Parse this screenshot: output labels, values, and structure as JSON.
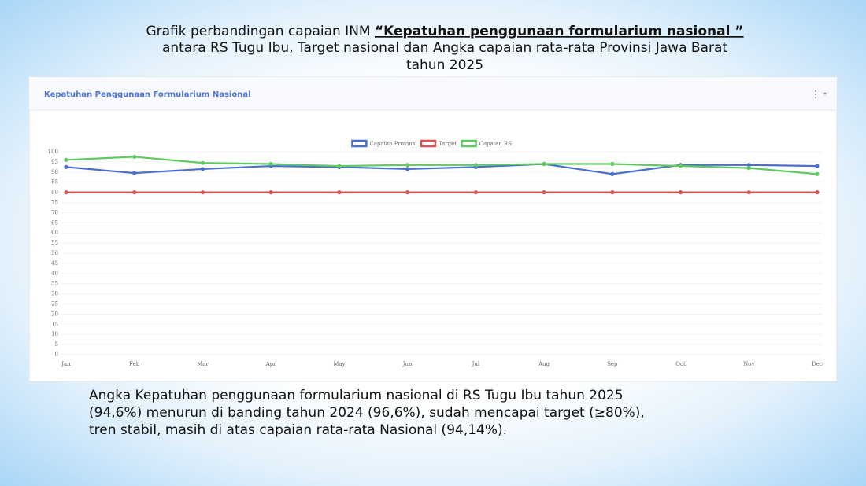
{
  "header": {
    "line1_prefix": "Grafik perbandingan capaian INM ",
    "line1_emphasis": "“Kepatuhan penggunaan formularium nasional ”",
    "line2": "antara RS Tugu Ibu, Target nasional dan Angka capaian rata-rata Provinsi Jawa Barat",
    "line3": "tahun 2025"
  },
  "chart_data": {
    "type": "line",
    "title": "Kepatuhan Penggunaan Formularium Nasional",
    "categories": [
      "Jan",
      "Feb",
      "Mar",
      "Apr",
      "May",
      "Jun",
      "Jul",
      "Aug",
      "Sep",
      "Oct",
      "Nov",
      "Dec"
    ],
    "series": [
      {
        "name": "Capaian Provinsi",
        "color": "#4a6fd0",
        "values": [
          92.5,
          89.5,
          91.5,
          93,
          92.5,
          91.5,
          92.5,
          94,
          89,
          93.5,
          93.5,
          93
        ]
      },
      {
        "name": "Target",
        "color": "#d9534f",
        "values": [
          80,
          80,
          80,
          80,
          80,
          80,
          80,
          80,
          80,
          80,
          80,
          80
        ]
      },
      {
        "name": "Capaian RS",
        "color": "#5fcb5f",
        "values": [
          96,
          97.5,
          94.5,
          94,
          93,
          93.5,
          93.5,
          94,
          94,
          93,
          92,
          89
        ]
      }
    ],
    "ylim": [
      0,
      100
    ],
    "yticks": [
      0,
      5,
      10,
      15,
      20,
      25,
      30,
      35,
      40,
      45,
      50,
      55,
      60,
      65,
      70,
      75,
      80,
      85,
      90,
      95,
      100
    ],
    "grid": true,
    "legend": "top"
  },
  "footer": {
    "lines": [
      "Angka Kepatuhan penggunaan formularium nasional di RS Tugu Ibu tahun 2025",
      "(94,6%) menurun di banding tahun 2024 (96,6%), sudah mencapai target (≥80%),",
      "tren stabil, masih di atas capaian rata-rata Nasional (94,14%)."
    ]
  }
}
